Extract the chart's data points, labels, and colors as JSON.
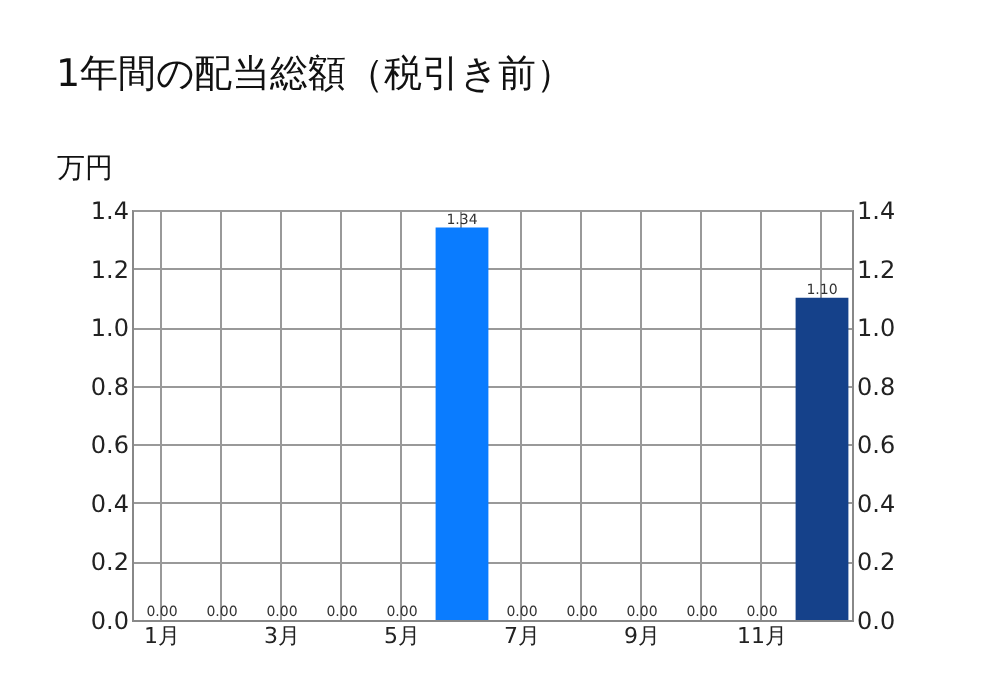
{
  "chart_data": {
    "type": "bar",
    "title": "1年間の配当総額（税引き前）",
    "ylabel": "万円",
    "categories": [
      "1月",
      null,
      "3月",
      null,
      "5月",
      null,
      "7月",
      null,
      "9月",
      null,
      "11月",
      null
    ],
    "values": [
      0,
      0,
      0,
      0,
      0,
      1.34,
      0,
      0,
      0,
      0,
      0,
      1.1
    ],
    "value_labels": [
      "0.00",
      "0.00",
      "0.00",
      "0.00",
      "0.00",
      "1.34",
      "0.00",
      "0.00",
      "0.00",
      "0.00",
      "0.00",
      "1.10"
    ],
    "colors": [
      "#0a7cff",
      "#0a7cff",
      "#0a7cff",
      "#0a7cff",
      "#0a7cff",
      "#0a7cff",
      "#0a7cff",
      "#0a7cff",
      "#0a7cff",
      "#0a7cff",
      "#0a7cff",
      "#15418a"
    ],
    "ylim": [
      0,
      1.4
    ],
    "yticks": [
      {
        "value": 0,
        "label": "0.0"
      },
      {
        "value": 0.2,
        "label": "0.2"
      },
      {
        "value": 0.4,
        "label": "0.4"
      },
      {
        "value": 0.6,
        "label": "0.6"
      },
      {
        "value": 0.8,
        "label": "0.8"
      },
      {
        "value": 1.0,
        "label": "1.0"
      },
      {
        "value": 1.2,
        "label": "1.2"
      },
      {
        "value": 1.4,
        "label": "1.4"
      }
    ],
    "y2lim": [
      0,
      1.4
    ],
    "y2ticks": [
      {
        "value": 0,
        "label": "0.0"
      },
      {
        "value": 0.2,
        "label": "0.2"
      },
      {
        "value": 0.4,
        "label": "0.4"
      },
      {
        "value": 0.6,
        "label": "0.6"
      },
      {
        "value": 0.8,
        "label": "0.8"
      },
      {
        "value": 1.0,
        "label": "1.0"
      },
      {
        "value": 1.2,
        "label": "1.2"
      },
      {
        "value": 1.4,
        "label": "1.4"
      }
    ],
    "grid": true
  }
}
